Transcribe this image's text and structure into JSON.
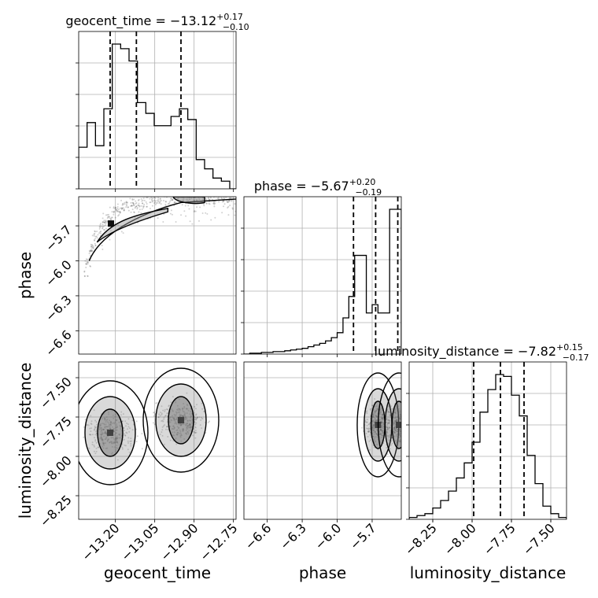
{
  "chart_data": {
    "type": "corner",
    "parameters": [
      "geocent_time",
      "phase",
      "luminosity_distance"
    ],
    "grid": true,
    "diagonal": [
      {
        "name": "geocent_time",
        "title": "geocent_time = −13.12",
        "title_sup": "+0.17",
        "title_sub": "−0.10",
        "range": [
          -13.34,
          -12.74
        ],
        "quantiles": [
          -13.22,
          -13.12,
          -12.95
        ],
        "bins": [
          -13.34,
          -13.308,
          -13.276,
          -13.244,
          -13.212,
          -13.18,
          -13.148,
          -13.116,
          -13.084,
          -13.052,
          -13.02,
          -12.988,
          -12.956,
          -12.924,
          -12.892,
          -12.86,
          -12.828,
          -12.796,
          -12.764,
          -12.74
        ],
        "counts": [
          0.27,
          0.43,
          0.28,
          0.52,
          0.94,
          0.91,
          0.83,
          0.56,
          0.49,
          0.41,
          0.41,
          0.47,
          0.52,
          0.45,
          0.19,
          0.13,
          0.07,
          0.05,
          0.0
        ]
      },
      {
        "name": "phase",
        "title": "phase = −5.67",
        "title_sup": "+0.20",
        "title_sub": "−0.19",
        "range": [
          -6.8,
          -5.45
        ],
        "quantiles": [
          -5.86,
          -5.67,
          -5.48
        ],
        "bins": [
          -6.8,
          -6.75,
          -6.7,
          -6.65,
          -6.6,
          -6.55,
          -6.5,
          -6.45,
          -6.4,
          -6.35,
          -6.3,
          -6.25,
          -6.2,
          -6.15,
          -6.1,
          -6.05,
          -6.0,
          -5.95,
          -5.9,
          -5.85,
          -5.8,
          -5.75,
          -5.7,
          -5.65,
          -5.6,
          -5.55,
          -5.5,
          -5.45
        ],
        "counts": [
          0.0,
          0.005,
          0.005,
          0.01,
          0.01,
          0.015,
          0.015,
          0.02,
          0.025,
          0.03,
          0.035,
          0.045,
          0.055,
          0.065,
          0.08,
          0.1,
          0.13,
          0.22,
          0.35,
          0.6,
          0.6,
          0.25,
          0.3,
          0.25,
          0.25,
          0.88,
          0.88
        ]
      },
      {
        "name": "luminosity_distance",
        "title": "luminosity_distance = −7.82",
        "title_sup": "+0.15",
        "title_sub": "−0.17",
        "range": [
          -8.4,
          -7.4
        ],
        "quantiles": [
          -7.99,
          -7.82,
          -7.67
        ],
        "bins": [
          -8.4,
          -8.35,
          -8.3,
          -8.25,
          -8.2,
          -8.15,
          -8.1,
          -8.05,
          -8.0,
          -7.95,
          -7.9,
          -7.85,
          -7.8,
          -7.75,
          -7.7,
          -7.65,
          -7.6,
          -7.55,
          -7.5,
          -7.45,
          -7.4
        ],
        "counts": [
          0.01,
          0.02,
          0.03,
          0.06,
          0.1,
          0.15,
          0.22,
          0.3,
          0.41,
          0.57,
          0.69,
          0.77,
          0.76,
          0.66,
          0.55,
          0.34,
          0.19,
          0.07,
          0.03,
          0.01
        ]
      }
    ],
    "panels_2d": [
      {
        "x": "geocent_time",
        "y": "phase",
        "xlim": [
          -13.34,
          -12.74
        ],
        "ylim": [
          -6.8,
          -5.45
        ],
        "samples_trend": "phase rises with geocent_time, saturating near -5.5",
        "contour_centers": [
          [
            -13.22,
            -5.68
          ]
        ]
      },
      {
        "x": "geocent_time",
        "y": "luminosity_distance",
        "xlim": [
          -13.34,
          -12.74
        ],
        "ylim": [
          -8.4,
          -7.4
        ],
        "contour_centers": [
          [
            -13.22,
            -7.85
          ],
          [
            -12.95,
            -7.77
          ]
        ]
      },
      {
        "x": "phase",
        "y": "luminosity_distance",
        "xlim": [
          -6.8,
          -5.45
        ],
        "ylim": [
          -8.4,
          -7.4
        ],
        "contour_centers": [
          [
            -5.65,
            -7.8
          ],
          [
            -5.47,
            -7.8
          ]
        ]
      }
    ],
    "ticks": {
      "geocent_time": [
        "−13.20",
        "−13.05",
        "−12.90",
        "−12.75"
      ],
      "phase_x": [
        "−6.6",
        "−6.3",
        "−6.0",
        "−5.7"
      ],
      "phase_y": [
        "−5.7",
        "−6.0",
        "−6.3",
        "−6.6"
      ],
      "luminosity_distance_x": [
        "−8.25",
        "−8.00",
        "−7.75",
        "−7.50"
      ],
      "luminosity_distance_y": [
        "−7.50",
        "−7.75",
        "−8.00",
        "−8.25"
      ]
    },
    "xlabels": [
      "geocent_time",
      "phase",
      "luminosity_distance"
    ],
    "ylabels": [
      "phase",
      "luminosity_distance"
    ]
  }
}
